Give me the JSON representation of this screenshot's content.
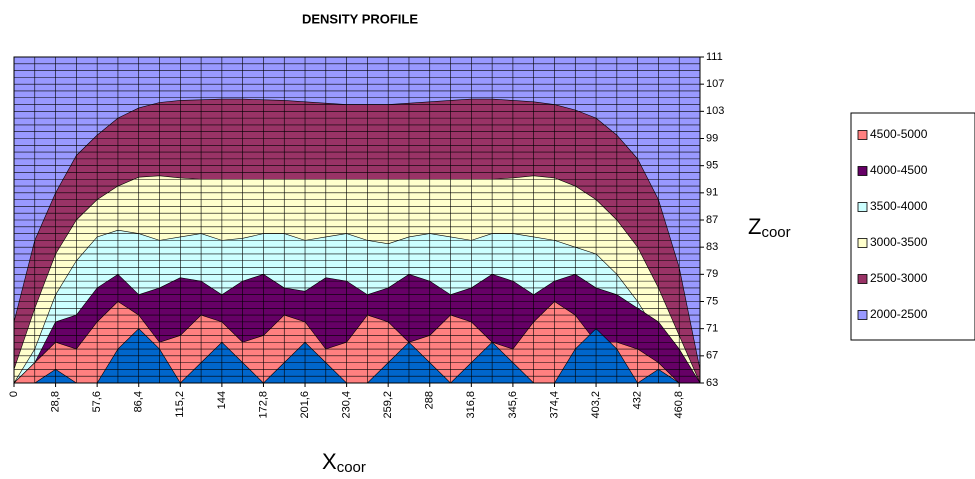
{
  "chart_data": {
    "type": "contour",
    "title": "DENSITY PROFILE",
    "x_label": "X",
    "x_label_sub": "coor",
    "y_label": "Z",
    "y_label_sub": "coor",
    "x": [
      0,
      14.4,
      28.8,
      43.2,
      57.6,
      72,
      86.4,
      100.8,
      115.2,
      129.6,
      144,
      158.4,
      172.8,
      187.2,
      201.6,
      216,
      230.4,
      244.8,
      259.2,
      273.6,
      288,
      302.4,
      316.8,
      331.2,
      345.6,
      360,
      374.4,
      388.8,
      403.2,
      417.6,
      432,
      446.4,
      460.8,
      475.2
    ],
    "series": [
      {
        "name": "4500-5000",
        "color": "#ff8080",
        "values": [
          63,
          66,
          69,
          68,
          72,
          75,
          73,
          69,
          70,
          73,
          72,
          69,
          70,
          73,
          72,
          68,
          69,
          73,
          72,
          69,
          70,
          73,
          72,
          69,
          68,
          72,
          75,
          73,
          69,
          69,
          68,
          66,
          63,
          63
        ]
      },
      {
        "name": "4000-4500",
        "color": "#660066",
        "values": [
          63,
          66,
          72,
          73,
          77,
          79,
          76,
          77,
          78.5,
          78,
          76,
          78,
          79,
          77,
          76.5,
          78.5,
          78,
          76,
          77,
          79,
          78,
          76,
          77,
          79,
          78,
          76,
          78,
          79,
          77,
          76,
          74,
          72,
          68,
          63
        ]
      },
      {
        "name": "3500-4000",
        "color": "#ccffff",
        "values": [
          63,
          68,
          76,
          81,
          84.5,
          85.5,
          85,
          84,
          84.5,
          85,
          84,
          84.3,
          85,
          85,
          84,
          84.5,
          85,
          84,
          83.5,
          84.5,
          85,
          84.5,
          84,
          85,
          85,
          84.5,
          84,
          83,
          82,
          79,
          75,
          70,
          66,
          63
        ]
      },
      {
        "name": "3000-3500",
        "color": "#ffffcc",
        "values": [
          65,
          74,
          82,
          87,
          90,
          92,
          93.3,
          93.5,
          93.2,
          93,
          93,
          93,
          93,
          93,
          93,
          93,
          93,
          93,
          93,
          93,
          93,
          93,
          93,
          93,
          93.2,
          93.5,
          93.2,
          92,
          90,
          87,
          83,
          77,
          70,
          63
        ]
      },
      {
        "name": "2500-3000",
        "color": "#993366",
        "values": [
          72,
          84,
          91,
          96.5,
          99.5,
          102,
          103.5,
          104.3,
          104.6,
          104.7,
          104.8,
          104.8,
          104.7,
          104.6,
          104.4,
          104.2,
          104,
          104,
          104,
          104.2,
          104.4,
          104.6,
          104.8,
          104.8,
          104.6,
          104.4,
          104,
          103.2,
          102,
          99.5,
          96,
          90,
          80,
          65
        ]
      },
      {
        "name": "2000-2500",
        "color": "#9999ff",
        "values": [
          111,
          111,
          111,
          111,
          111,
          111,
          111,
          111,
          111,
          111,
          111,
          111,
          111,
          111,
          111,
          111,
          111,
          111,
          111,
          111,
          111,
          111,
          111,
          111,
          111,
          111,
          111,
          111,
          111,
          111,
          111,
          111,
          111,
          111
        ]
      },
      {
        "color": "#0066cc",
        "values": [
          63,
          63,
          65,
          63,
          63,
          68,
          71,
          68,
          63,
          66,
          69,
          66,
          63,
          66,
          69,
          66,
          63,
          63,
          66,
          69,
          66,
          63,
          66,
          69,
          66,
          63,
          63,
          68,
          71,
          68,
          63,
          65,
          63,
          63
        ]
      }
    ],
    "xlim": [
      0,
      475.2
    ],
    "xticks": [
      0,
      {
        "value": 28.8,
        "label": "28,8"
      },
      {
        "value": 57.6,
        "label": "57,6"
      },
      {
        "value": 86.4,
        "label": "86,4"
      },
      {
        "value": 115.2,
        "label": "115,2"
      },
      144,
      {
        "value": 172.8,
        "label": "172,8"
      },
      {
        "value": 201.6,
        "label": "201,6"
      },
      {
        "value": 230.4,
        "label": "230,4"
      },
      {
        "value": 259.2,
        "label": "259,2"
      },
      288,
      {
        "value": 316.8,
        "label": "316,8"
      },
      {
        "value": 345.6,
        "label": "345,6"
      },
      {
        "value": 374.4,
        "label": "374,4"
      },
      {
        "value": 403.2,
        "label": "403,2"
      },
      432,
      {
        "value": 460.8,
        "label": "460,8"
      }
    ],
    "ylim": [
      63,
      111
    ],
    "yticks": [
      63,
      67,
      71,
      75,
      79,
      83,
      87,
      91,
      95,
      99,
      103,
      107,
      111
    ],
    "grid": true
  }
}
